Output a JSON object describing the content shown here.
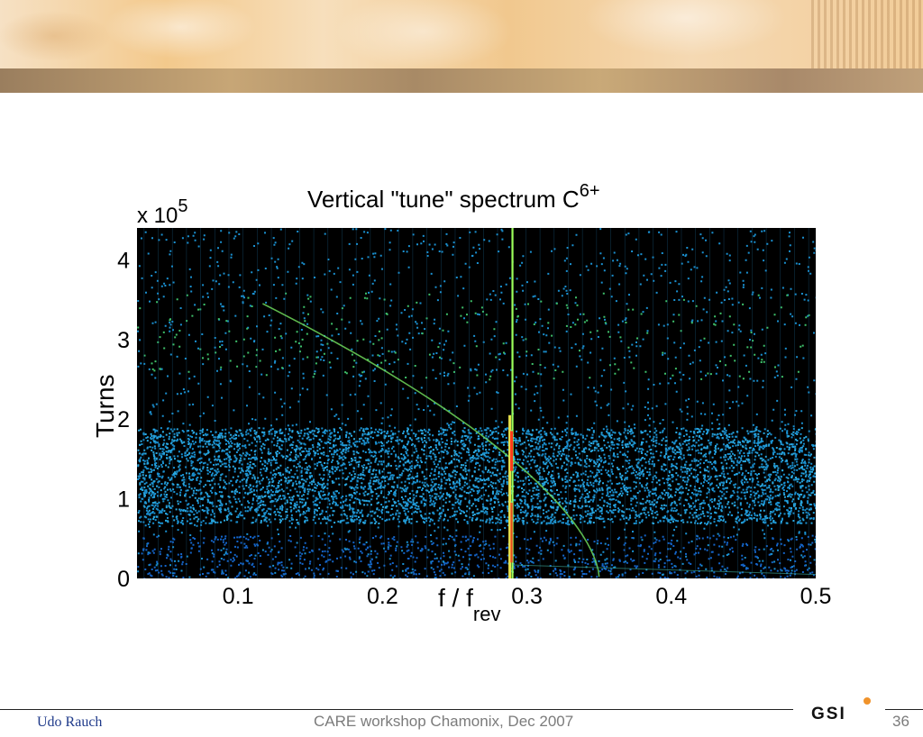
{
  "slide": {
    "author": "Udo Rauch",
    "event": "CARE workshop Chamonix, Dec 2007",
    "page_number": "36",
    "logo_text": "GSI"
  },
  "chart_data": {
    "type": "heatmap",
    "title": "Vertical \"tune\" spectrum C",
    "title_superscript": "6+",
    "xlabel": "f / f",
    "xlabel_subscript": "rev",
    "ylabel": "Turns",
    "y_multiplier": "x 10",
    "y_multiplier_exponent": "5",
    "x_ticks": [
      "0.1",
      "0.2",
      "0.3",
      "0.4",
      "0.5"
    ],
    "y_ticks": [
      "0",
      "1",
      "2",
      "3",
      "4"
    ],
    "xlim": [
      0.03,
      0.5
    ],
    "ylim": [
      0,
      4.4
    ],
    "grid": false,
    "features": {
      "tune_line": {
        "x": 0.29,
        "y_range": [
          0,
          4.4
        ],
        "color": "#9cff5a"
      },
      "tune_peak": {
        "x": 0.29,
        "y_range": [
          0,
          1.85
        ],
        "color": "#ff3a1a"
      },
      "drifting_line": {
        "x_start": 0.117,
        "y_start": 3.45,
        "x_end": 0.35,
        "y_end": 0.02,
        "color": "#6fd85a"
      },
      "noise_band": {
        "y_range": [
          0.7,
          1.9
        ],
        "color": "#1e9fd6"
      },
      "background_color": "#000000",
      "noise_colors": [
        "#1a90d0",
        "#1464c8",
        "#2aa8e0",
        "#3ec06a"
      ]
    }
  }
}
